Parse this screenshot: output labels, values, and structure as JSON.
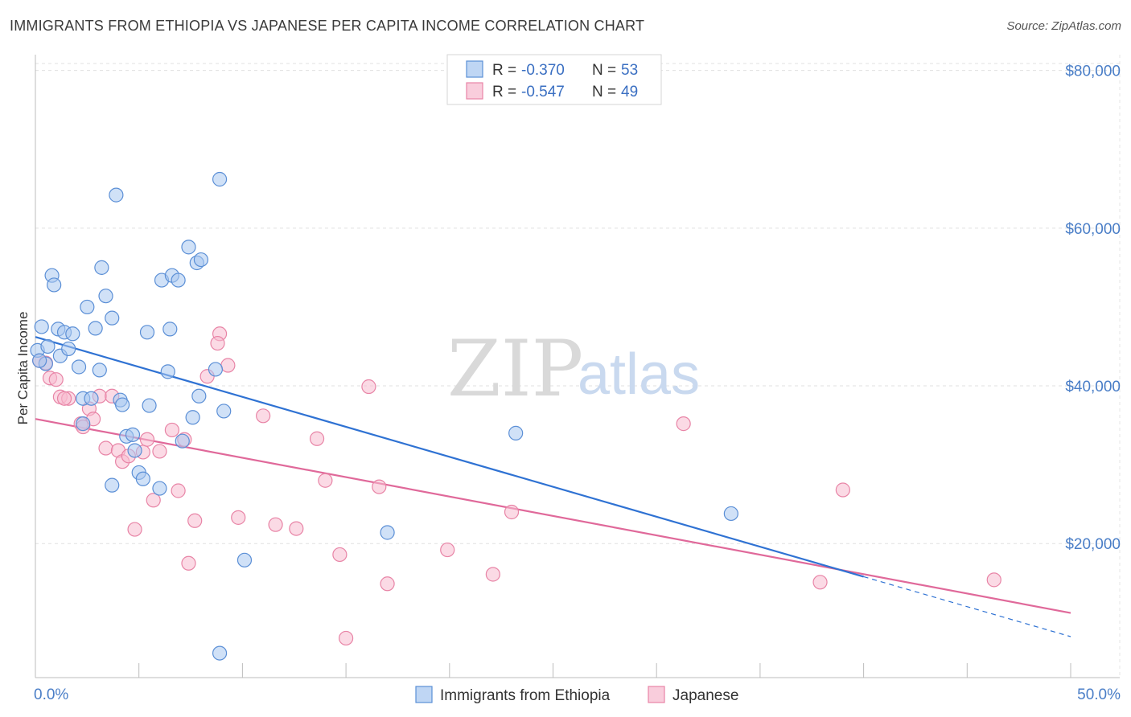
{
  "title": "IMMIGRANTS FROM ETHIOPIA VS JAPANESE PER CAPITA INCOME CORRELATION CHART",
  "source": "Source: ZipAtlas.com",
  "watermark": {
    "zip": "ZIP",
    "atlas": "atlas"
  },
  "legend": {
    "r_label": "R =",
    "n_label": "N =",
    "rows": [
      {
        "r": "-0.370",
        "n": "53"
      },
      {
        "r": "-0.547",
        "n": "49"
      }
    ]
  },
  "bottom_legend": [
    "Immigrants from Ethiopia",
    "Japanese"
  ],
  "colors": {
    "ethiopia_fill": "#a9c8f0",
    "ethiopia_stroke": "#5b8fd6",
    "ethiopia_line": "#2f72d3",
    "japanese_fill": "#f7bcd0",
    "japanese_stroke": "#e884a6",
    "japanese_line": "#e0699a",
    "tick_text": "#4a7ec7",
    "grid": "#e0e0e0"
  },
  "chart_data": {
    "type": "scatter",
    "xlabel": "",
    "ylabel": "Per Capita Income",
    "xlim": [
      0,
      50
    ],
    "ylim": [
      3000,
      82000
    ],
    "x_tick_labels": [
      {
        "value": 0,
        "label": "0.0%"
      },
      {
        "value": 50,
        "label": "50.0%"
      }
    ],
    "x_minor_ticks": [
      0,
      5,
      10,
      15,
      20,
      25,
      30,
      35,
      40,
      45,
      50
    ],
    "y_ticks": [
      {
        "value": 20000,
        "label": "$20,000"
      },
      {
        "value": 40000,
        "label": "$40,000"
      },
      {
        "value": 60000,
        "label": "$60,000"
      },
      {
        "value": 80000,
        "label": "$80,000"
      }
    ],
    "grid": true,
    "legend_position": "top-center",
    "series": [
      {
        "name": "Immigrants from Ethiopia",
        "r": -0.37,
        "n": 53,
        "trend": {
          "x0": 0,
          "y0": 46200,
          "x1": 40,
          "y1": 15800,
          "dashed_to_x": 50,
          "dashed_to_y": 8200
        },
        "points": [
          [
            0.1,
            44500
          ],
          [
            0.3,
            47500
          ],
          [
            0.5,
            42800
          ],
          [
            0.6,
            45000
          ],
          [
            0.8,
            54000
          ],
          [
            0.9,
            52800
          ],
          [
            1.1,
            47200
          ],
          [
            1.2,
            43800
          ],
          [
            1.4,
            46800
          ],
          [
            1.6,
            44700
          ],
          [
            1.8,
            46600
          ],
          [
            2.1,
            42400
          ],
          [
            2.3,
            38400
          ],
          [
            2.5,
            50000
          ],
          [
            2.7,
            38400
          ],
          [
            2.9,
            47300
          ],
          [
            3.1,
            42000
          ],
          [
            3.2,
            55000
          ],
          [
            3.4,
            51400
          ],
          [
            3.7,
            48600
          ],
          [
            3.9,
            64200
          ],
          [
            4.1,
            38200
          ],
          [
            4.2,
            37600
          ],
          [
            4.4,
            33600
          ],
          [
            4.7,
            33800
          ],
          [
            3.7,
            27400
          ],
          [
            4.8,
            31800
          ],
          [
            5.0,
            29000
          ],
          [
            5.2,
            28200
          ],
          [
            5.4,
            46800
          ],
          [
            5.5,
            37500
          ],
          [
            6.0,
            27000
          ],
          [
            6.1,
            53400
          ],
          [
            6.4,
            41800
          ],
          [
            6.5,
            47200
          ],
          [
            6.6,
            54000
          ],
          [
            6.9,
            53400
          ],
          [
            7.1,
            33000
          ],
          [
            7.4,
            57600
          ],
          [
            7.6,
            36000
          ],
          [
            7.8,
            55600
          ],
          [
            7.9,
            38700
          ],
          [
            8.0,
            56000
          ],
          [
            8.7,
            42100
          ],
          [
            8.9,
            66200
          ],
          [
            9.1,
            36800
          ],
          [
            10.1,
            17900
          ],
          [
            8.9,
            6100
          ],
          [
            2.3,
            35200
          ],
          [
            17.0,
            21400
          ],
          [
            23.2,
            34000
          ],
          [
            33.6,
            23800
          ],
          [
            0.2,
            43200
          ]
        ]
      },
      {
        "name": "Japanese",
        "r": -0.547,
        "n": 49,
        "trend": {
          "x0": 0,
          "y0": 35800,
          "x1": 50,
          "y1": 11200
        },
        "points": [
          [
            0.2,
            43200
          ],
          [
            0.5,
            42900
          ],
          [
            0.7,
            41000
          ],
          [
            1.0,
            40800
          ],
          [
            1.2,
            38600
          ],
          [
            1.6,
            38400
          ],
          [
            2.2,
            35200
          ],
          [
            2.3,
            34800
          ],
          [
            2.6,
            37100
          ],
          [
            2.8,
            35800
          ],
          [
            3.1,
            38700
          ],
          [
            3.4,
            32100
          ],
          [
            3.7,
            38700
          ],
          [
            4.0,
            31800
          ],
          [
            4.2,
            30400
          ],
          [
            4.5,
            31100
          ],
          [
            4.8,
            21800
          ],
          [
            5.2,
            31600
          ],
          [
            5.4,
            33200
          ],
          [
            5.7,
            25500
          ],
          [
            6.0,
            31700
          ],
          [
            6.6,
            34400
          ],
          [
            6.9,
            26700
          ],
          [
            7.2,
            33200
          ],
          [
            7.4,
            17500
          ],
          [
            7.7,
            22900
          ],
          [
            8.3,
            41200
          ],
          [
            8.9,
            46600
          ],
          [
            8.8,
            45400
          ],
          [
            9.3,
            42600
          ],
          [
            9.8,
            23300
          ],
          [
            11.0,
            36200
          ],
          [
            11.6,
            22400
          ],
          [
            12.6,
            21900
          ],
          [
            13.6,
            33300
          ],
          [
            14.0,
            28000
          ],
          [
            14.7,
            18600
          ],
          [
            15.0,
            8000
          ],
          [
            16.1,
            39900
          ],
          [
            16.6,
            27200
          ],
          [
            17.0,
            14900
          ],
          [
            19.9,
            19200
          ],
          [
            22.1,
            16100
          ],
          [
            23.0,
            24000
          ],
          [
            31.3,
            35200
          ],
          [
            37.9,
            15100
          ],
          [
            39.0,
            26800
          ],
          [
            46.3,
            15400
          ],
          [
            1.4,
            38400
          ]
        ]
      }
    ]
  }
}
